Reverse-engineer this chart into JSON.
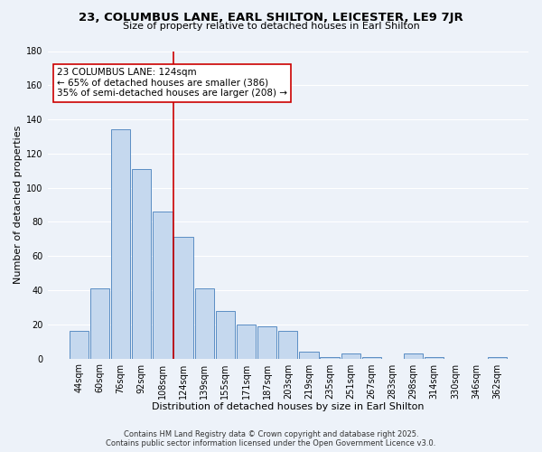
{
  "title": "23, COLUMBUS LANE, EARL SHILTON, LEICESTER, LE9 7JR",
  "subtitle": "Size of property relative to detached houses in Earl Shilton",
  "xlabel": "Distribution of detached houses by size in Earl Shilton",
  "ylabel": "Number of detached properties",
  "bar_labels": [
    "44sqm",
    "60sqm",
    "76sqm",
    "92sqm",
    "108sqm",
    "124sqm",
    "139sqm",
    "155sqm",
    "171sqm",
    "187sqm",
    "203sqm",
    "219sqm",
    "235sqm",
    "251sqm",
    "267sqm",
    "283sqm",
    "298sqm",
    "314sqm",
    "330sqm",
    "346sqm",
    "362sqm"
  ],
  "bar_values": [
    16,
    41,
    134,
    111,
    86,
    71,
    41,
    28,
    20,
    19,
    16,
    4,
    1,
    3,
    1,
    0,
    3,
    1,
    0,
    0,
    1
  ],
  "bar_color": "#c5d8ee",
  "bar_edge_color": "#5b8ec4",
  "highlight_index": 5,
  "highlight_line_color": "#cc0000",
  "ylim": [
    0,
    180
  ],
  "yticks": [
    0,
    20,
    40,
    60,
    80,
    100,
    120,
    140,
    160,
    180
  ],
  "annotation_line1": "23 COLUMBUS LANE: 124sqm",
  "annotation_line2": "← 65% of detached houses are smaller (386)",
  "annotation_line3": "35% of semi-detached houses are larger (208) →",
  "annotation_box_color": "#ffffff",
  "annotation_box_edge": "#cc0000",
  "footer_line1": "Contains HM Land Registry data © Crown copyright and database right 2025.",
  "footer_line2": "Contains public sector information licensed under the Open Government Licence v3.0.",
  "background_color": "#edf2f9",
  "grid_color": "#ffffff",
  "title_fontsize": 9.5,
  "subtitle_fontsize": 8,
  "axis_label_fontsize": 8,
  "tick_fontsize": 7,
  "annotation_fontsize": 7.5,
  "footer_fontsize": 6
}
